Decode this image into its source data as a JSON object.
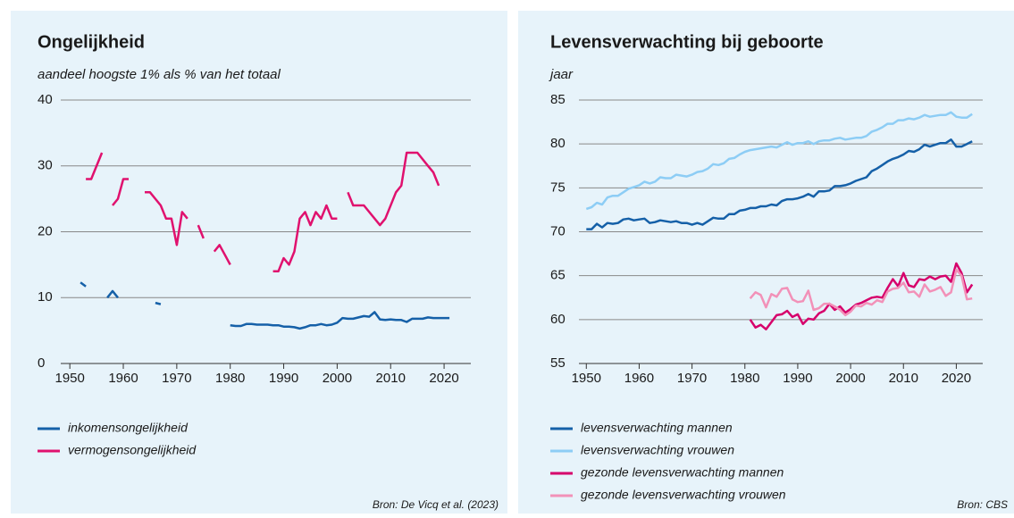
{
  "chart_data": [
    {
      "type": "line",
      "title": "Ongelijkheid",
      "subtitle": "aandeel hoogste 1% als % van het totaal",
      "source": "Bron: De Vicq et al. (2023)",
      "xlim": [
        1948.3,
        2025
      ],
      "xticks": [
        1950,
        1960,
        1970,
        1980,
        1990,
        2000,
        2010,
        2020
      ],
      "ylim": [
        0,
        40
      ],
      "yticks": [
        0,
        10,
        20,
        30,
        40
      ],
      "grid": true,
      "series": [
        {
          "name": "inkomensongelijkheid",
          "color": "#1560a8",
          "x": [
            1952,
            1953,
            1955,
            1957,
            1958,
            1959,
            1962,
            1966,
            1967,
            1970,
            1980,
            1981,
            1982,
            1983,
            1984,
            1985,
            1986,
            1987,
            1988,
            1989,
            1990,
            1991,
            1992,
            1993,
            1994,
            1995,
            1996,
            1997,
            1998,
            1999,
            2000,
            2001,
            2002,
            2003,
            2004,
            2005,
            2006,
            2007,
            2008,
            2009,
            2010,
            2011,
            2012,
            2013,
            2014,
            2015,
            2016,
            2017,
            2018,
            2019,
            2020,
            2021
          ],
          "values": [
            12.3,
            11.7,
            null,
            10,
            11,
            10,
            null,
            9.2,
            9,
            null,
            5.8,
            5.7,
            5.7,
            6.0,
            6.0,
            5.9,
            5.9,
            5.9,
            5.8,
            5.8,
            5.6,
            5.6,
            5.5,
            5.3,
            5.5,
            5.8,
            5.8,
            6.0,
            5.8,
            5.9,
            6.2,
            6.9,
            6.8,
            6.8,
            7.0,
            7.2,
            7.1,
            7.8,
            6.7,
            6.6,
            6.7,
            6.6,
            6.6,
            6.3,
            6.8,
            6.8,
            6.8,
            7.0,
            6.9,
            6.9,
            6.9,
            6.9
          ]
        },
        {
          "name": "vermogensongelijkheid",
          "color": "#e0116e",
          "x": [
            1953,
            1954,
            1956,
            1957,
            1958,
            1959,
            1960,
            1961,
            1963,
            1964,
            1965,
            1967,
            1968,
            1969,
            1970,
            1971,
            1972,
            1973,
            1974,
            1975,
            1976,
            1977,
            1978,
            1980,
            1984,
            1988,
            1989,
            1990,
            1991,
            1992,
            1993,
            1994,
            1995,
            1996,
            1997,
            1998,
            1999,
            2000,
            2001,
            2002,
            2003,
            2004,
            2005,
            2008,
            2009,
            2011,
            2012,
            2013,
            2014,
            2015,
            2017,
            2018,
            2019
          ],
          "values": [
            28,
            28,
            32,
            null,
            24,
            25,
            28,
            28,
            null,
            26,
            26,
            24,
            22,
            22,
            18,
            23,
            22,
            null,
            21,
            19,
            null,
            17,
            18,
            15,
            null,
            14,
            14,
            16,
            15,
            17,
            22,
            23,
            21,
            23,
            22,
            24,
            22,
            22,
            null,
            26,
            24,
            24,
            24,
            21,
            22,
            26,
            27,
            32,
            32,
            32,
            30,
            29,
            27
          ]
        }
      ]
    },
    {
      "type": "line",
      "title": "Levensverwachting bij geboorte",
      "subtitle": "jaar",
      "source": "Bron: CBS",
      "xlim": [
        1948.6,
        2025
      ],
      "xticks": [
        1950,
        1960,
        1970,
        1980,
        1990,
        2000,
        2010,
        2020
      ],
      "ylim": [
        55,
        85
      ],
      "yticks": [
        55,
        60,
        65,
        70,
        75,
        80,
        85
      ],
      "grid": true,
      "x": [
        1950,
        1951,
        1952,
        1953,
        1954,
        1955,
        1956,
        1957,
        1958,
        1959,
        1960,
        1961,
        1962,
        1963,
        1964,
        1965,
        1966,
        1967,
        1968,
        1969,
        1970,
        1971,
        1972,
        1973,
        1974,
        1975,
        1976,
        1977,
        1978,
        1979,
        1980,
        1981,
        1982,
        1983,
        1984,
        1985,
        1986,
        1987,
        1988,
        1989,
        1990,
        1991,
        1992,
        1993,
        1994,
        1995,
        1996,
        1997,
        1998,
        1999,
        2000,
        2001,
        2002,
        2003,
        2004,
        2005,
        2006,
        2007,
        2008,
        2009,
        2010,
        2011,
        2012,
        2013,
        2014,
        2015,
        2016,
        2017,
        2018,
        2019,
        2020,
        2021,
        2022,
        2023
      ],
      "series": [
        {
          "name": "levensverwachting mannen",
          "color": "#1560a8",
          "values": [
            70.3,
            70.3,
            70.9,
            70.5,
            71.0,
            70.9,
            71.0,
            71.4,
            71.5,
            71.3,
            71.4,
            71.5,
            71.0,
            71.1,
            71.3,
            71.2,
            71.1,
            71.2,
            71.0,
            71.0,
            70.8,
            71.0,
            70.8,
            71.2,
            71.6,
            71.5,
            71.5,
            72.0,
            72.0,
            72.4,
            72.5,
            72.7,
            72.7,
            72.9,
            72.9,
            73.1,
            73.0,
            73.5,
            73.7,
            73.7,
            73.8,
            74.0,
            74.3,
            74.0,
            74.6,
            74.6,
            74.7,
            75.2,
            75.2,
            75.3,
            75.5,
            75.8,
            76.0,
            76.2,
            76.9,
            77.2,
            77.6,
            78.0,
            78.3,
            78.5,
            78.8,
            79.2,
            79.1,
            79.4,
            79.9,
            79.7,
            79.9,
            80.1,
            80.1,
            80.5,
            79.7,
            79.7,
            80.0,
            80.3
          ]
        },
        {
          "name": "levensverwachting vrouwen",
          "color": "#8dcdf5",
          "values": [
            72.6,
            72.8,
            73.3,
            73.1,
            73.9,
            74.1,
            74.1,
            74.5,
            74.9,
            75.1,
            75.3,
            75.7,
            75.5,
            75.7,
            76.2,
            76.1,
            76.1,
            76.5,
            76.4,
            76.3,
            76.5,
            76.8,
            76.9,
            77.2,
            77.7,
            77.6,
            77.8,
            78.3,
            78.4,
            78.8,
            79.1,
            79.3,
            79.4,
            79.5,
            79.6,
            79.7,
            79.6,
            79.9,
            80.2,
            79.9,
            80.1,
            80.1,
            80.3,
            80.0,
            80.3,
            80.4,
            80.4,
            80.6,
            80.7,
            80.5,
            80.6,
            80.7,
            80.7,
            80.9,
            81.4,
            81.6,
            81.9,
            82.3,
            82.3,
            82.7,
            82.7,
            82.9,
            82.8,
            83.0,
            83.3,
            83.1,
            83.2,
            83.3,
            83.3,
            83.6,
            83.1,
            83.0,
            83.0,
            83.4
          ]
        },
        {
          "name": "gezonde levensverwachting mannen",
          "color": "#d6006b",
          "values": [
            null,
            null,
            null,
            null,
            null,
            null,
            null,
            null,
            null,
            null,
            null,
            null,
            null,
            null,
            null,
            null,
            null,
            null,
            null,
            null,
            null,
            null,
            null,
            null,
            null,
            null,
            null,
            null,
            null,
            null,
            null,
            60.0,
            59.1,
            59.4,
            58.9,
            59.7,
            60.5,
            60.6,
            61.0,
            60.3,
            60.6,
            59.5,
            60.1,
            60.0,
            60.7,
            61.0,
            61.8,
            61.1,
            61.5,
            60.8,
            61.2,
            61.7,
            61.9,
            62.2,
            62.5,
            62.6,
            62.5,
            63.6,
            64.6,
            63.8,
            65.3,
            63.9,
            63.7,
            64.6,
            64.5,
            64.9,
            64.6,
            64.9,
            65.0,
            64.3,
            66.4,
            65.3,
            63.1,
            64.0
          ]
        },
        {
          "name": "gezonde levensverwachting vrouwen",
          "color": "#f291b8",
          "values": [
            null,
            null,
            null,
            null,
            null,
            null,
            null,
            null,
            null,
            null,
            null,
            null,
            null,
            null,
            null,
            null,
            null,
            null,
            null,
            null,
            null,
            null,
            null,
            null,
            null,
            null,
            null,
            null,
            null,
            null,
            null,
            62.4,
            63.1,
            62.8,
            61.4,
            62.9,
            62.6,
            63.5,
            63.6,
            62.3,
            62.0,
            62.1,
            63.3,
            61.1,
            61.3,
            61.8,
            61.8,
            61.5,
            61.1,
            60.5,
            60.9,
            61.6,
            61.5,
            61.9,
            61.7,
            62.2,
            62.0,
            63.2,
            63.5,
            63.6,
            64.2,
            63.1,
            63.2,
            62.6,
            64.0,
            63.2,
            63.4,
            63.7,
            62.7,
            63.1,
            65.7,
            65.0,
            62.3,
            62.4
          ]
        }
      ]
    }
  ]
}
